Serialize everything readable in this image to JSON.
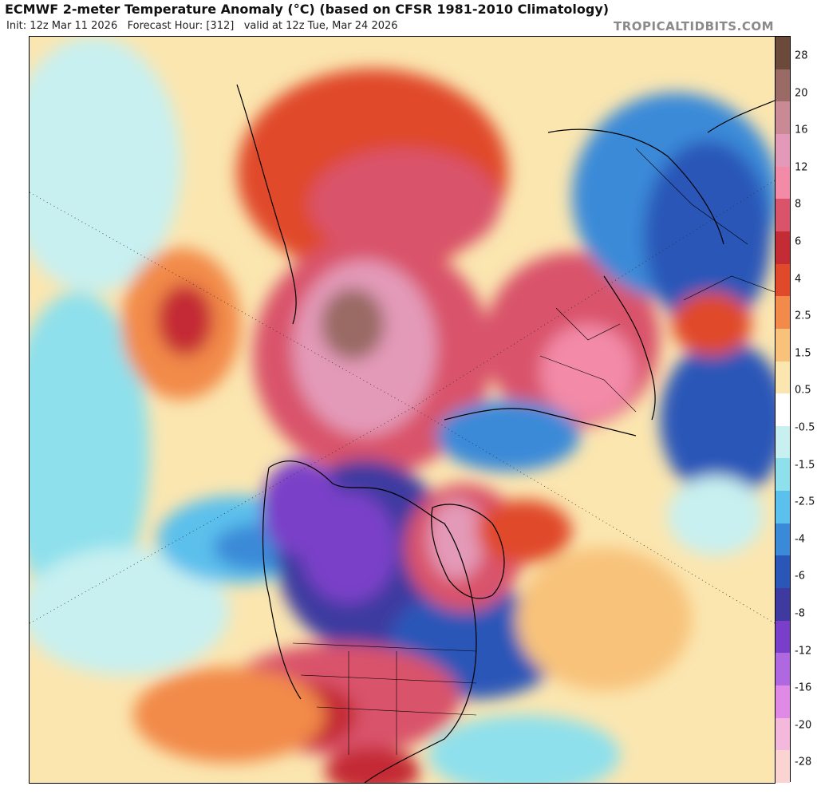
{
  "header": {
    "title": "ECMWF 2-meter Temperature Anomaly (°C) (based on CFSR 1981-2010 Climatology)",
    "subtitle": "Init: 12z Mar 11 2026   Forecast Hour: [312]   valid at 12z Tue, Mar 24 2026",
    "brand": "TROPICALTIDBITS.COM"
  },
  "map": {
    "projection": "polar stereographic (north pole)",
    "field": "2-meter temperature anomaly"
  },
  "colorbar": {
    "labels": [
      "28",
      "20",
      "16",
      "12",
      "8",
      "6",
      "4",
      "2.5",
      "1.5",
      "0.5",
      "-0.5",
      "-1.5",
      "-2.5",
      "-4",
      "-6",
      "-8",
      "-12",
      "-16",
      "-20",
      "-28"
    ],
    "colors": [
      "#6b4a3a",
      "#9a6b65",
      "#c98a95",
      "#e39ab8",
      "#f28aa8",
      "#d9536b",
      "#c42c35",
      "#e04a2a",
      "#f28a4a",
      "#f8c27a",
      "#fbe6b0",
      "#ffffff",
      "#c8f0f0",
      "#8ee0ec",
      "#5cc0ec",
      "#3b8ad8",
      "#2a56b8",
      "#3e3aa0",
      "#7a3fc8",
      "#b068e0",
      "#e08ae8",
      "#f3b8dc",
      "#fbd3d0"
    ],
    "unit": "°C"
  }
}
